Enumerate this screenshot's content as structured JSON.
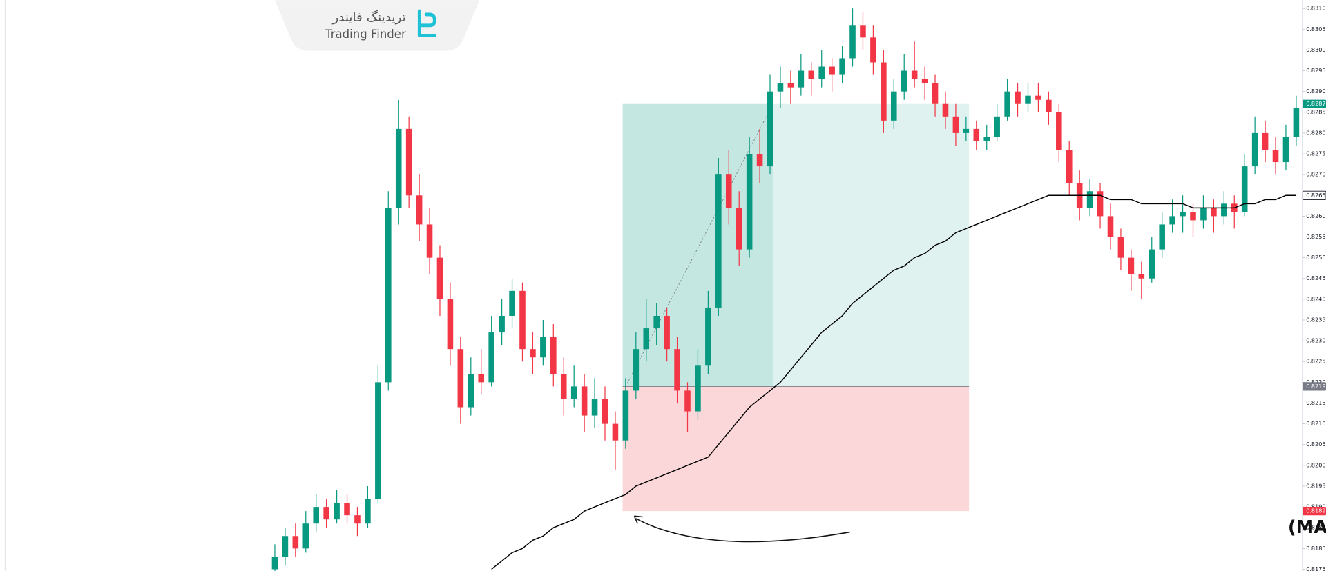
{
  "brand": {
    "name_fa": "تریدینگ فایندر",
    "name_en": "Trading Finder"
  },
  "chart_data": {
    "type": "candlestick",
    "annotation": "حد ضرر (SL) در محدوده پایین میانگین متحرک (MA)",
    "up_color": "#089981",
    "down_color": "#f23645",
    "ma_color": "#000000",
    "ylim": [
      0.81746,
      0.8312
    ],
    "yticks": [
      {
        "value": 0.831,
        "label": "0.8310"
      },
      0.8305,
      {
        "value": 0.83,
        "label": "0.8300"
      },
      0.8295,
      {
        "value": 0.829,
        "label": "0.8290"
      },
      0.8285,
      {
        "value": 0.828,
        "label": "0.8280"
      },
      0.8275,
      {
        "value": 0.827,
        "label": "0.8270"
      },
      0.8265,
      {
        "value": 0.826,
        "label": "0.8260"
      },
      0.8255,
      {
        "value": 0.825,
        "label": "0.8250"
      },
      0.8245,
      {
        "value": 0.824,
        "label": "0.8240"
      },
      0.8235,
      {
        "value": 0.823,
        "label": "0.8230"
      },
      0.8225,
      {
        "value": 0.822,
        "label": "0.8220"
      },
      0.8215,
      {
        "value": 0.821,
        "label": "0.8210"
      },
      0.8205,
      {
        "value": 0.82,
        "label": "0.8200"
      },
      0.8195,
      {
        "value": 0.819,
        "label": "0.8190"
      },
      0.8185,
      {
        "value": 0.818,
        "label": "0.8180"
      },
      0.8175
    ],
    "price_labels": [
      {
        "value": 0.8287,
        "label": "0.8287",
        "color": "#089981"
      },
      {
        "value": 0.8265,
        "label": "0.8265",
        "color": "#ffffff"
      },
      {
        "value": 0.8219,
        "label": "0.8219",
        "color": "#787b86"
      },
      {
        "value": 0.8189,
        "label": "0.8189",
        "color": "#f23645"
      }
    ],
    "position": {
      "entry": 0.8219,
      "take_profit": 0.8287,
      "stop_loss": 0.8189,
      "start": 34,
      "hit": 48,
      "end": 67
    },
    "candles": [
      [
        0.8175,
        0.8181,
        0.8173,
        0.8178
      ],
      [
        0.8178,
        0.8185,
        0.8176,
        0.8183
      ],
      [
        0.8183,
        0.8186,
        0.8178,
        0.818
      ],
      [
        0.818,
        0.8189,
        0.8179,
        0.8186
      ],
      [
        0.8186,
        0.8193,
        0.8184,
        0.819
      ],
      [
        0.819,
        0.8192,
        0.8185,
        0.8187
      ],
      [
        0.8187,
        0.8194,
        0.8186,
        0.8191
      ],
      [
        0.8191,
        0.8193,
        0.8186,
        0.8188
      ],
      [
        0.8188,
        0.819,
        0.8183,
        0.8186
      ],
      [
        0.8186,
        0.8195,
        0.8185,
        0.8192
      ],
      [
        0.8192,
        0.8224,
        0.8191,
        0.822
      ],
      [
        0.822,
        0.8266,
        0.8218,
        0.8262
      ],
      [
        0.8262,
        0.8288,
        0.8258,
        0.8281
      ],
      [
        0.8281,
        0.8284,
        0.8262,
        0.8265
      ],
      [
        0.8265,
        0.827,
        0.8254,
        0.8258
      ],
      [
        0.8258,
        0.8262,
        0.8246,
        0.825
      ],
      [
        0.825,
        0.8253,
        0.8236,
        0.824
      ],
      [
        0.824,
        0.8244,
        0.8224,
        0.8228
      ],
      [
        0.8228,
        0.8231,
        0.821,
        0.8214
      ],
      [
        0.8214,
        0.8226,
        0.8212,
        0.8222
      ],
      [
        0.8222,
        0.8228,
        0.8217,
        0.822
      ],
      [
        0.822,
        0.8236,
        0.8219,
        0.8232
      ],
      [
        0.8232,
        0.824,
        0.8229,
        0.8236
      ],
      [
        0.8236,
        0.8245,
        0.8233,
        0.8242
      ],
      [
        0.8242,
        0.8244,
        0.8225,
        0.8228
      ],
      [
        0.8228,
        0.8232,
        0.8222,
        0.8226
      ],
      [
        0.8226,
        0.8235,
        0.8224,
        0.8231
      ],
      [
        0.8231,
        0.8234,
        0.8219,
        0.8222
      ],
      [
        0.8222,
        0.8226,
        0.8212,
        0.8216
      ],
      [
        0.8216,
        0.8224,
        0.8214,
        0.8219
      ],
      [
        0.8219,
        0.8222,
        0.8208,
        0.8212
      ],
      [
        0.8212,
        0.8221,
        0.8209,
        0.8216
      ],
      [
        0.8216,
        0.8219,
        0.8206,
        0.821
      ],
      [
        0.821,
        0.8213,
        0.8199,
        0.8206
      ],
      [
        0.8206,
        0.8221,
        0.8204,
        0.8218
      ],
      [
        0.8218,
        0.8232,
        0.8216,
        0.8228
      ],
      [
        0.8228,
        0.824,
        0.8225,
        0.8233
      ],
      [
        0.8233,
        0.8239,
        0.8229,
        0.8236
      ],
      [
        0.8236,
        0.8238,
        0.8225,
        0.8228
      ],
      [
        0.8228,
        0.8231,
        0.8215,
        0.8218
      ],
      [
        0.8218,
        0.822,
        0.8208,
        0.8213
      ],
      [
        0.8213,
        0.8228,
        0.8211,
        0.8224
      ],
      [
        0.8224,
        0.8242,
        0.8222,
        0.8238
      ],
      [
        0.8238,
        0.8274,
        0.8236,
        0.827
      ],
      [
        0.827,
        0.8276,
        0.8258,
        0.8262
      ],
      [
        0.8262,
        0.8266,
        0.8248,
        0.8252
      ],
      [
        0.8252,
        0.8279,
        0.825,
        0.8275
      ],
      [
        0.8275,
        0.8281,
        0.8268,
        0.8272
      ],
      [
        0.8272,
        0.8294,
        0.827,
        0.829
      ],
      [
        0.829,
        0.8296,
        0.8286,
        0.8292
      ],
      [
        0.8292,
        0.8295,
        0.8287,
        0.8291
      ],
      [
        0.8291,
        0.8299,
        0.8289,
        0.8295
      ],
      [
        0.8295,
        0.8297,
        0.8289,
        0.8293
      ],
      [
        0.8293,
        0.83,
        0.8291,
        0.8296
      ],
      [
        0.8296,
        0.8298,
        0.829,
        0.8294
      ],
      [
        0.8294,
        0.8301,
        0.8292,
        0.8298
      ],
      [
        0.8298,
        0.831,
        0.8296,
        0.8306
      ],
      [
        0.8306,
        0.8309,
        0.83,
        0.8303
      ],
      [
        0.8303,
        0.8306,
        0.8294,
        0.8297
      ],
      [
        0.8297,
        0.83,
        0.828,
        0.8283
      ],
      [
        0.8283,
        0.8293,
        0.8281,
        0.829
      ],
      [
        0.829,
        0.8299,
        0.8288,
        0.8295
      ],
      [
        0.8295,
        0.8302,
        0.8291,
        0.8293
      ],
      [
        0.8293,
        0.8296,
        0.8288,
        0.8292
      ],
      [
        0.8292,
        0.8294,
        0.8284,
        0.8287
      ],
      [
        0.8287,
        0.829,
        0.8281,
        0.8284
      ],
      [
        0.8284,
        0.8287,
        0.8277,
        0.828
      ],
      [
        0.828,
        0.8284,
        0.8278,
        0.8281
      ],
      [
        0.8281,
        0.8283,
        0.8276,
        0.8278
      ],
      [
        0.8278,
        0.8282,
        0.8276,
        0.8279
      ],
      [
        0.8279,
        0.8287,
        0.8278,
        0.8284
      ],
      [
        0.8284,
        0.8293,
        0.8283,
        0.829
      ],
      [
        0.829,
        0.8292,
        0.8284,
        0.8287
      ],
      [
        0.8287,
        0.8292,
        0.8285,
        0.8289
      ],
      [
        0.8289,
        0.8292,
        0.8285,
        0.8288
      ],
      [
        0.8288,
        0.829,
        0.8282,
        0.8285
      ],
      [
        0.8285,
        0.8287,
        0.8273,
        0.8276
      ],
      [
        0.8276,
        0.8278,
        0.8265,
        0.8268
      ],
      [
        0.8268,
        0.8271,
        0.8259,
        0.8262
      ],
      [
        0.8262,
        0.8269,
        0.826,
        0.8266
      ],
      [
        0.8266,
        0.8268,
        0.8257,
        0.826
      ],
      [
        0.826,
        0.8263,
        0.8252,
        0.8255
      ],
      [
        0.8255,
        0.8257,
        0.8247,
        0.825
      ],
      [
        0.825,
        0.8252,
        0.8242,
        0.8246
      ],
      [
        0.8246,
        0.8249,
        0.824,
        0.8245
      ],
      [
        0.8245,
        0.8255,
        0.8244,
        0.8252
      ],
      [
        0.8252,
        0.8261,
        0.825,
        0.8258
      ],
      [
        0.8258,
        0.8264,
        0.8256,
        0.826
      ],
      [
        0.826,
        0.8265,
        0.8256,
        0.8261
      ],
      [
        0.8261,
        0.8263,
        0.8255,
        0.8259
      ],
      [
        0.8259,
        0.8265,
        0.8257,
        0.8262
      ],
      [
        0.8262,
        0.8264,
        0.8256,
        0.826
      ],
      [
        0.826,
        0.8266,
        0.8258,
        0.8263
      ],
      [
        0.8263,
        0.8265,
        0.8257,
        0.8261
      ],
      [
        0.8261,
        0.8275,
        0.826,
        0.8272
      ],
      [
        0.8272,
        0.8284,
        0.827,
        0.828
      ],
      [
        0.828,
        0.8283,
        0.8273,
        0.8276
      ],
      [
        0.8276,
        0.8279,
        0.827,
        0.8273
      ],
      [
        0.8273,
        0.8282,
        0.8271,
        0.8279
      ],
      [
        0.8279,
        0.8289,
        0.8277,
        0.8286
      ]
    ],
    "ma": [
      null,
      null,
      null,
      null,
      null,
      null,
      null,
      null,
      null,
      null,
      null,
      null,
      null,
      null,
      null,
      null,
      null,
      null,
      null,
      null,
      null,
      0.8175,
      0.8177,
      0.8179,
      0.818,
      0.8182,
      0.8183,
      0.8185,
      0.8186,
      0.8187,
      0.8189,
      0.819,
      0.8191,
      0.8192,
      0.8193,
      0.8195,
      0.8196,
      0.8197,
      0.8198,
      0.8199,
      0.82,
      0.8201,
      0.8202,
      0.8205,
      0.8208,
      0.8211,
      0.8214,
      0.8216,
      0.8218,
      0.822,
      0.8223,
      0.8226,
      0.8229,
      0.8232,
      0.8234,
      0.8236,
      0.8239,
      0.8241,
      0.8243,
      0.8245,
      0.8247,
      0.8248,
      0.825,
      0.8251,
      0.8253,
      0.8254,
      0.8256,
      0.8257,
      0.8258,
      0.8259,
      0.826,
      0.8261,
      0.8262,
      0.8263,
      0.8264,
      0.8265,
      0.8265,
      0.8265,
      0.8265,
      0.8265,
      0.8265,
      0.8264,
      0.8264,
      0.8264,
      0.8263,
      0.8263,
      0.8263,
      0.8263,
      0.8263,
      0.8262,
      0.8262,
      0.8262,
      0.8262,
      0.8262,
      0.8263,
      0.8263,
      0.8264,
      0.8264,
      0.8265,
      0.8265
    ]
  }
}
